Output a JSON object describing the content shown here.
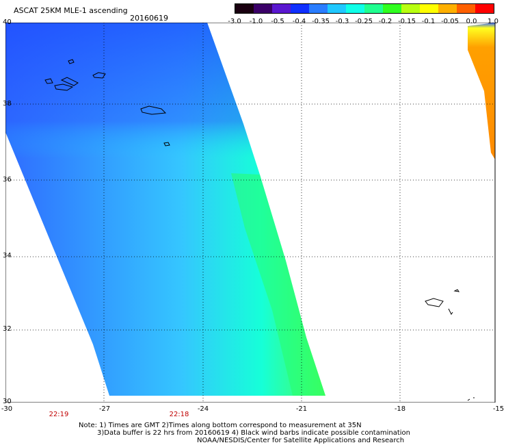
{
  "header": {
    "title": "ASCAT 25KM MLE-1 ascending",
    "date": "20160619"
  },
  "colorbar": {
    "labels": [
      "-3.0",
      "-1.0",
      "-0.5",
      "-0.4",
      "-0.35",
      "-0.3",
      "-0.25",
      "-0.2",
      "-0.15",
      "-0.1",
      "-0.05",
      "0.0",
      "1.0"
    ],
    "colors": [
      "#1a0010",
      "#3b0068",
      "#5a18d0",
      "#1030ff",
      "#2a7dff",
      "#20c8ff",
      "#10ffe8",
      "#20ff90",
      "#30ff20",
      "#b8ff10",
      "#ffff00",
      "#ffb000",
      "#ff6000",
      "#ff0000"
    ]
  },
  "axes": {
    "lat_ticks": [
      "40",
      "38",
      "36",
      "34",
      "32",
      "30"
    ],
    "lon_ticks": [
      "-30",
      "-27",
      "-24",
      "-21",
      "-18",
      "-15"
    ]
  },
  "times": [
    "22:19",
    "22:18"
  ],
  "notes": {
    "line1": "Note: 1) Times are GMT 2)Times along bottom correspond to measurement at 35N",
    "line2": "3)Data buffer is 22 hrs from 20160619 4) Black wind barbs indicate possible contamination",
    "line3": "NOAA/NESDIS/Center for Satellite Applications and Research"
  }
}
